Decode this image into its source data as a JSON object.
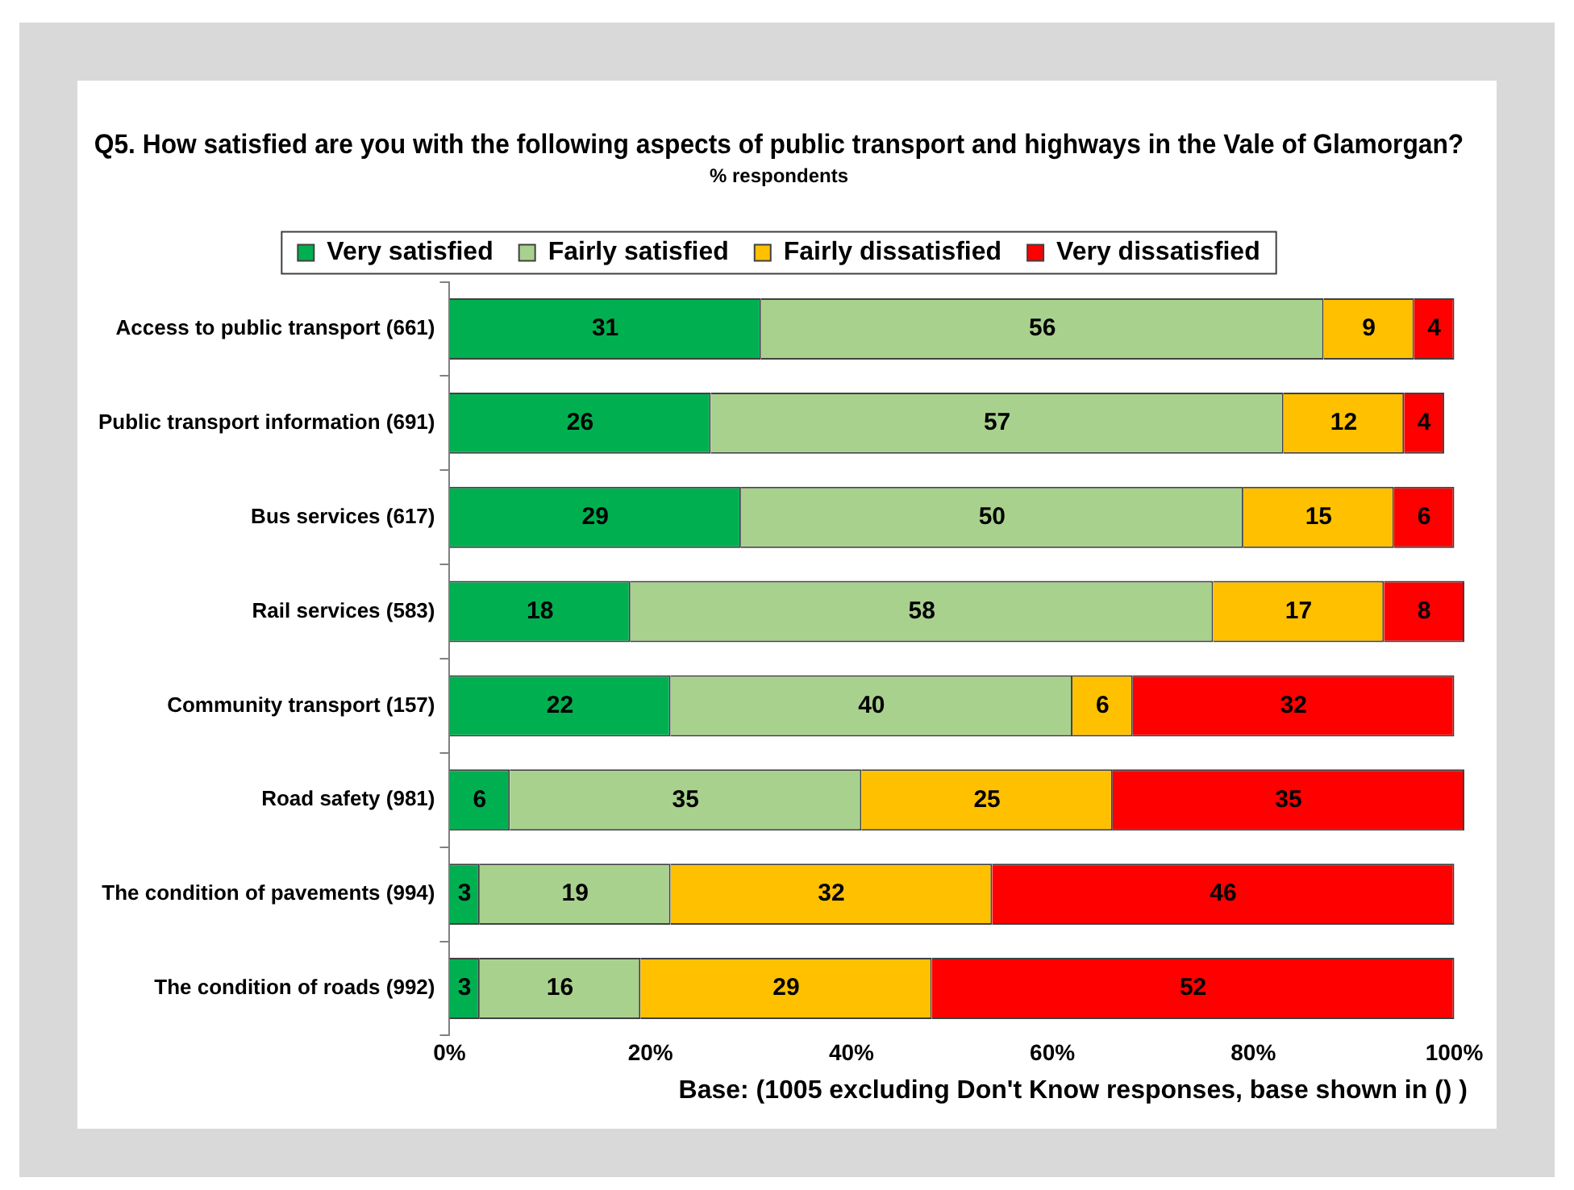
{
  "chart_data": {
    "type": "bar",
    "orientation": "horizontal",
    "stacked": true,
    "title": "Q5. How satisfied are you with the following aspects of public transport and highways in the Vale of Glamorgan?",
    "subtitle": "% respondents",
    "categories": [
      "Access to public transport (661)",
      "Public transport information (691)",
      "Bus services (617)",
      "Rail services (583)",
      "Community transport (157)",
      "Road safety (981)",
      "The condition of pavements (994)",
      "The condition of roads (992)"
    ],
    "series": [
      {
        "name": "Very satisfied",
        "color": "#00b050",
        "values": [
          31,
          26,
          29,
          18,
          22,
          6,
          3,
          3
        ]
      },
      {
        "name": "Fairly satisfied",
        "color": "#a9d18e",
        "values": [
          56,
          57,
          50,
          58,
          40,
          35,
          19,
          16
        ]
      },
      {
        "name": "Fairly dissatisfied",
        "color": "#ffc000",
        "values": [
          9,
          12,
          15,
          17,
          6,
          25,
          32,
          29
        ]
      },
      {
        "name": "Very dissatisfied",
        "color": "#ff0000",
        "values": [
          4,
          4,
          6,
          8,
          32,
          35,
          46,
          52
        ]
      }
    ],
    "xlim": [
      0,
      101
    ],
    "xticks": [
      {
        "value": 0,
        "label": "0%"
      },
      {
        "value": 20,
        "label": "20%"
      },
      {
        "value": 40,
        "label": "40%"
      },
      {
        "value": 60,
        "label": "60%"
      },
      {
        "value": 80,
        "label": "80%"
      },
      {
        "value": 100,
        "label": "100%"
      }
    ],
    "data_labels": true,
    "grid": false,
    "legend": "top",
    "annotations": [
      "Base: (1005 excluding Don't Know responses, base shown in () )"
    ]
  }
}
